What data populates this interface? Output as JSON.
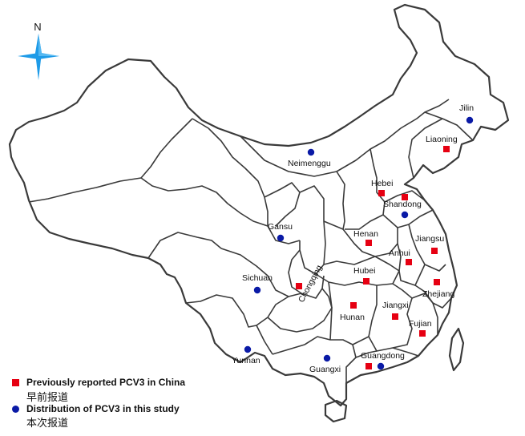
{
  "map": {
    "north_label": "N",
    "north_arrow_color": "#1e9be8",
    "boundary_color": "#3a3a3a",
    "marker_colors": {
      "reported": "#e60012",
      "study": "#0a1aa6"
    },
    "provinces": {
      "jilin": "Jilin",
      "liaoning": "Liaoning",
      "neimenggu": "Neimenggu",
      "hebei": "Hebei",
      "shandong": "Shandong",
      "gansu": "Gansu",
      "henan": "Henan",
      "jiangsu": "Jiangsu",
      "anhui": "Anhui",
      "sichuan": "Sichuan",
      "chongqing": "Chongqing",
      "hubei": "Hubei",
      "zhejiang": "Zhejiang",
      "hunan": "Hunan",
      "jiangxi": "Jiangxi",
      "fujian": "Fujian",
      "yunnan": "Yunnan",
      "guangxi": "Guangxi",
      "guangdong": "Guangdong"
    }
  },
  "legend": {
    "reported_en": "Previously reported PCV3 in China",
    "reported_cn": "早前报道",
    "study_en": "Distribution of PCV3 in this study",
    "study_cn": "本次报道"
  }
}
